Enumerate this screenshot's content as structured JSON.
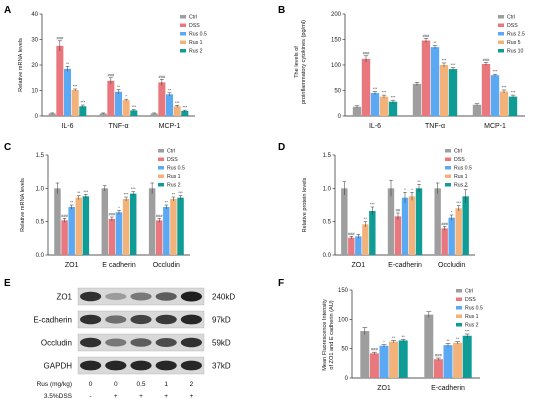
{
  "colors": {
    "Ctrl": "#9e9e9e",
    "DSS": "#e8777e",
    "Rus 0.5": "#5aa9f2",
    "Rus 1": "#f2b27a",
    "Rus 2": "#0f9c96",
    "Rus 2.5": "#5aa9f2",
    "Rus 5": "#f2b27a",
    "Rus 10": "#0f9c96",
    "axis": "#222222"
  },
  "chart_data": [
    {
      "panel": "A",
      "type": "bar",
      "categories": [
        "IL-6",
        "TNF-α",
        "MCP-1"
      ],
      "ylabel": "Relative mRNA levels",
      "ylim": [
        0,
        40
      ],
      "yticks": [
        "0",
        "10",
        "20",
        "30",
        "40"
      ],
      "series": [
        {
          "name": "Ctrl",
          "values": [
            1.0,
            1.0,
            1.0
          ],
          "errors": [
            0.2,
            0.2,
            0.2
          ],
          "sig": [
            "",
            "",
            ""
          ]
        },
        {
          "name": "DSS",
          "values": [
            27.5,
            13.8,
            13.2
          ],
          "errors": [
            2.0,
            1.2,
            1.2
          ],
          "sig": [
            "###",
            "###",
            "###"
          ]
        },
        {
          "name": "Rus 0.5",
          "values": [
            18.5,
            9.5,
            8.5
          ],
          "errors": [
            1.0,
            0.8,
            0.6
          ],
          "sig": [
            "**",
            "**",
            "**"
          ]
        },
        {
          "name": "Rus 1",
          "values": [
            10.2,
            6.2,
            3.8
          ],
          "errors": [
            0.4,
            0.4,
            0.4
          ],
          "sig": [
            "***",
            "*",
            "***"
          ]
        },
        {
          "name": "Rus 2",
          "values": [
            3.8,
            2.2,
            2.0
          ],
          "errors": [
            0.5,
            0.3,
            0.3
          ],
          "sig": [
            "***",
            "***",
            "***"
          ]
        }
      ]
    },
    {
      "panel": "B",
      "type": "bar",
      "categories": [
        "IL-6",
        "TNF-α",
        "MCP-1"
      ],
      "ylabel": "The levels of proinflammatory cytokines (pg/ml)",
      "ylim": [
        0,
        200
      ],
      "yticks": [
        "0",
        "50",
        "100",
        "150",
        "200"
      ],
      "series": [
        {
          "name": "Ctrl",
          "values": [
            18,
            63,
            22
          ],
          "errors": [
            2,
            3,
            2
          ],
          "sig": [
            "",
            "",
            ""
          ]
        },
        {
          "name": "DSS",
          "values": [
            112,
            148,
            102
          ],
          "errors": [
            6,
            4,
            3
          ],
          "sig": [
            "###",
            "###",
            "###"
          ]
        },
        {
          "name": "Rus 2.5",
          "values": [
            45,
            135,
            80
          ],
          "errors": [
            3,
            3,
            2
          ],
          "sig": [
            "***",
            "**",
            "***"
          ]
        },
        {
          "name": "Rus 5",
          "values": [
            38,
            100,
            48
          ],
          "errors": [
            3,
            4,
            3
          ],
          "sig": [
            "***",
            "***",
            "***"
          ]
        },
        {
          "name": "Rus 10",
          "values": [
            28,
            92,
            38
          ],
          "errors": [
            3,
            3,
            3
          ],
          "sig": [
            "***",
            "***",
            "***"
          ]
        }
      ]
    },
    {
      "panel": "C",
      "type": "bar",
      "categories": [
        "ZO1",
        "E cadherin",
        "Occludin"
      ],
      "ylabel": "Relative mRNA levels",
      "ylim": [
        0,
        1.5
      ],
      "yticks": [
        "0.0",
        "0.5",
        "1.0",
        "1.5"
      ],
      "series": [
        {
          "name": "Ctrl",
          "values": [
            1.0,
            1.0,
            1.0
          ],
          "errors": [
            0.08,
            0.04,
            0.08
          ],
          "sig": [
            "",
            "",
            ""
          ]
        },
        {
          "name": "DSS",
          "values": [
            0.52,
            0.54,
            0.52
          ],
          "errors": [
            0.03,
            0.03,
            0.03
          ],
          "sig": [
            "###",
            "###",
            "###"
          ]
        },
        {
          "name": "Rus 0.5",
          "values": [
            0.72,
            0.64,
            0.72
          ],
          "errors": [
            0.03,
            0.03,
            0.03
          ],
          "sig": [
            "**",
            "*",
            "**"
          ]
        },
        {
          "name": "Rus 1",
          "values": [
            0.86,
            0.84,
            0.84
          ],
          "errors": [
            0.03,
            0.03,
            0.03
          ],
          "sig": [
            "**",
            "***",
            "**"
          ]
        },
        {
          "name": "Rus 2",
          "values": [
            0.88,
            0.92,
            0.86
          ],
          "errors": [
            0.03,
            0.03,
            0.03
          ],
          "sig": [
            "***",
            "***",
            "***"
          ]
        }
      ]
    },
    {
      "panel": "D",
      "type": "bar",
      "categories": [
        "ZO1",
        "E-cadherin",
        "Occludin"
      ],
      "ylabel": "Relative protein levels",
      "ylim": [
        0,
        1.5
      ],
      "yticks": [
        "0.0",
        "0.5",
        "1.0",
        "1.5"
      ],
      "series": [
        {
          "name": "Ctrl",
          "values": [
            1.0,
            1.0,
            1.0
          ],
          "errors": [
            0.1,
            0.12,
            0.08
          ],
          "sig": [
            "",
            "",
            ""
          ]
        },
        {
          "name": "DSS",
          "values": [
            0.26,
            0.58,
            0.4
          ],
          "errors": [
            0.02,
            0.05,
            0.03
          ],
          "sig": [
            "###",
            "##",
            "###"
          ]
        },
        {
          "name": "Rus 0.5",
          "values": [
            0.28,
            0.86,
            0.56
          ],
          "errors": [
            0.03,
            0.08,
            0.04
          ],
          "sig": [
            "",
            "*",
            "*"
          ]
        },
        {
          "name": "Rus 1",
          "values": [
            0.46,
            0.88,
            0.7
          ],
          "errors": [
            0.04,
            0.06,
            0.04
          ],
          "sig": [
            "**",
            "*",
            "***"
          ]
        },
        {
          "name": "Rus 2",
          "values": [
            0.66,
            1.0,
            0.88
          ],
          "errors": [
            0.06,
            0.06,
            0.1
          ],
          "sig": [
            "***",
            "**",
            "***"
          ]
        }
      ]
    },
    {
      "panel": "F",
      "type": "bar",
      "categories": [
        "ZO1",
        "E-cadherin"
      ],
      "ylabel": "Mean Fluorescence Intensity of ZO1 and E cadherin (AU)",
      "ylim": [
        0,
        150
      ],
      "yticks": [
        "0",
        "50",
        "100",
        "150"
      ],
      "series": [
        {
          "name": "Ctrl",
          "values": [
            80,
            108
          ],
          "errors": [
            6,
            5
          ],
          "sig": [
            "",
            ""
          ]
        },
        {
          "name": "DSS",
          "values": [
            42,
            32
          ],
          "errors": [
            2,
            2
          ],
          "sig": [
            "###",
            "###"
          ]
        },
        {
          "name": "Rus 0.5",
          "values": [
            55,
            56
          ],
          "errors": [
            2,
            3
          ],
          "sig": [
            "*",
            "**"
          ]
        },
        {
          "name": "Rus 1",
          "values": [
            62,
            60
          ],
          "errors": [
            2,
            2
          ],
          "sig": [
            "**",
            "**"
          ]
        },
        {
          "name": "Rus 2",
          "values": [
            64,
            72
          ],
          "errors": [
            2,
            3
          ],
          "sig": [
            "**",
            "***"
          ]
        }
      ]
    }
  ],
  "western_blot": {
    "panel": "E",
    "proteins": [
      {
        "name": "ZO1",
        "size": "240kD",
        "intensity": [
          0.85,
          0.25,
          0.45,
          0.6,
          0.95
        ]
      },
      {
        "name": "E-cadherin",
        "size": "97kD",
        "intensity": [
          0.85,
          0.5,
          0.75,
          0.8,
          0.9
        ]
      },
      {
        "name": "Occludin",
        "size": "59kD",
        "intensity": [
          0.85,
          0.45,
          0.6,
          0.7,
          0.85
        ]
      },
      {
        "name": "GAPDH",
        "size": "37kD",
        "intensity": [
          0.9,
          0.9,
          0.9,
          0.9,
          0.9
        ]
      }
    ],
    "rows": [
      {
        "label": "Rus (mg/kg)",
        "values": [
          "0",
          "0",
          "0.5",
          "1",
          "2"
        ]
      },
      {
        "label": "3.5%DSS",
        "values": [
          "-",
          "+",
          "+",
          "+",
          "+"
        ]
      }
    ]
  }
}
